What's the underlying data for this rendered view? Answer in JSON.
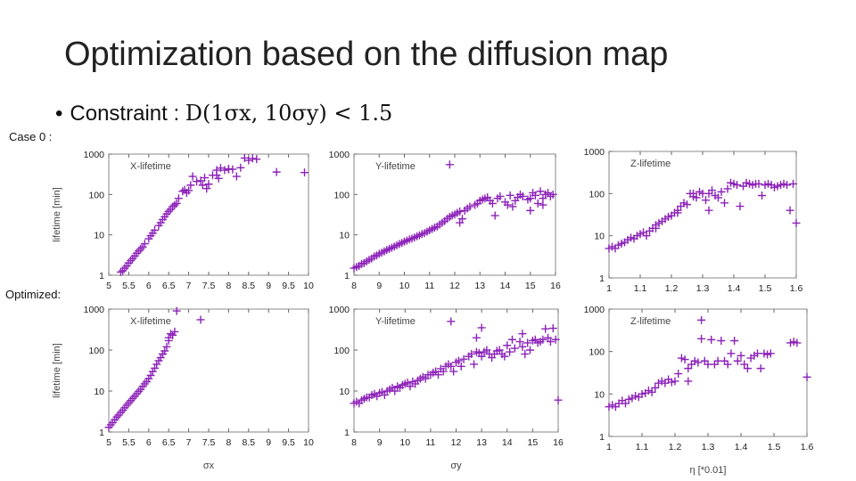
{
  "slide": {
    "title": "Optimization based on the diffusion map",
    "bullet": {
      "label": "Constraint : ",
      "formula": "D(1σx, 10σy) < 1.5"
    },
    "case_label": "Case 0 :",
    "optimized_label": "Optimized:"
  },
  "colors": {
    "marker": "#8c22b8",
    "frame": "#888888",
    "text": "#222222"
  },
  "chart_data": [
    {
      "id": "case0-x",
      "type": "scatter",
      "title": "X-lifetime",
      "xlabel": "",
      "ylabel": "lifetime [min]",
      "yscale": "log",
      "xlim": [
        5,
        10
      ],
      "ylim": [
        1,
        1000
      ],
      "xticks": [
        "5",
        "5.5",
        "6",
        "6.5",
        "7",
        "7.5",
        "8",
        "8.5",
        "9",
        "9.5",
        "10"
      ],
      "yticks": [
        "1",
        "10",
        "100",
        "1000"
      ],
      "x": [
        5.3,
        5.35,
        5.4,
        5.45,
        5.5,
        5.55,
        5.6,
        5.65,
        5.7,
        5.75,
        5.8,
        5.85,
        5.9,
        6.0,
        6.05,
        6.1,
        6.15,
        6.25,
        6.3,
        6.35,
        6.4,
        6.45,
        6.5,
        6.55,
        6.6,
        6.65,
        6.7,
        6.75,
        6.85,
        6.9,
        6.95,
        7.0,
        7.05,
        7.1,
        7.2,
        7.3,
        7.35,
        7.4,
        7.45,
        7.5,
        7.6,
        7.7,
        7.75,
        7.8,
        7.9,
        8.0,
        8.1,
        8.2,
        8.3,
        8.4,
        8.5,
        8.6,
        8.7,
        9.2,
        9.9,
        8.0,
        7.7
      ],
      "y": [
        1.2,
        1.3,
        1.5,
        1.7,
        2.0,
        2.3,
        2.6,
        3.0,
        3.5,
        4.0,
        4.5,
        5.0,
        6.0,
        8.0,
        9.5,
        11,
        13,
        17,
        20,
        24,
        28,
        33,
        38,
        43,
        50,
        55,
        60,
        80,
        120,
        130,
        110,
        125,
        170,
        280,
        210,
        220,
        170,
        260,
        140,
        180,
        300,
        400,
        250,
        450,
        400,
        420,
        420,
        280,
        460,
        800,
        700,
        780,
        750,
        360,
        350,
        430,
        300
      ]
    },
    {
      "id": "case0-y",
      "type": "scatter",
      "title": "Y-lifetime",
      "xlabel": "",
      "ylabel": "",
      "yscale": "log",
      "xlim": [
        8,
        16
      ],
      "ylim": [
        1,
        1000
      ],
      "xticks": [
        "8",
        "9",
        "10",
        "11",
        "12",
        "13",
        "14",
        "15",
        "16"
      ],
      "yticks": [
        "1",
        "10",
        "100",
        "1000"
      ],
      "x": [
        8.0,
        8.1,
        8.2,
        8.3,
        8.4,
        8.5,
        8.6,
        8.7,
        8.8,
        8.9,
        9.0,
        9.1,
        9.2,
        9.3,
        9.4,
        9.5,
        9.6,
        9.7,
        9.8,
        9.9,
        10.0,
        10.1,
        10.2,
        10.3,
        10.4,
        10.5,
        10.6,
        10.7,
        10.8,
        10.9,
        11.0,
        11.1,
        11.2,
        11.3,
        11.4,
        11.5,
        11.6,
        11.7,
        11.8,
        11.9,
        12.0,
        12.1,
        12.2,
        12.4,
        12.5,
        12.6,
        12.8,
        12.9,
        13.0,
        13.1,
        13.2,
        13.3,
        13.4,
        13.5,
        13.7,
        13.8,
        14.0,
        14.1,
        14.2,
        14.4,
        14.5,
        14.6,
        14.7,
        14.9,
        15.0,
        15.1,
        15.2,
        15.3,
        15.4,
        15.5,
        15.6,
        15.7,
        15.8,
        15.9,
        12.3,
        13.6,
        14.3,
        15.0,
        15.5,
        11.8,
        12.2
      ],
      "y": [
        1.5,
        1.6,
        1.7,
        1.9,
        2.0,
        2.2,
        2.4,
        2.6,
        2.9,
        3.1,
        3.4,
        3.6,
        3.9,
        4.2,
        4.5,
        4.8,
        5.1,
        5.5,
        5.9,
        6.3,
        6.8,
        7.2,
        7.7,
        8.1,
        8.6,
        9.2,
        9.8,
        10.5,
        11,
        12,
        13,
        14,
        15,
        16,
        18,
        20,
        22,
        25,
        28,
        30,
        32,
        35,
        38,
        40,
        45,
        50,
        55,
        60,
        70,
        75,
        80,
        85,
        70,
        60,
        80,
        90,
        65,
        55,
        95,
        70,
        85,
        100,
        90,
        75,
        80,
        110,
        95,
        60,
        120,
        80,
        100,
        110,
        90,
        100,
        25,
        30,
        50,
        40,
        55,
        550,
        20
      ]
    },
    {
      "id": "case0-z",
      "type": "scatter",
      "title": "Z-lifetime",
      "xlabel": "",
      "ylabel": "",
      "yscale": "log",
      "xlim": [
        1,
        1.6
      ],
      "ylim": [
        1,
        1000
      ],
      "xticks": [
        "1",
        "1.1",
        "1.2",
        "1.3",
        "1.4",
        "1.5",
        "1.6"
      ],
      "yticks": [
        "1",
        "10",
        "100",
        "1000"
      ],
      "x": [
        1.0,
        1.01,
        1.02,
        1.03,
        1.04,
        1.05,
        1.06,
        1.07,
        1.08,
        1.09,
        1.1,
        1.11,
        1.12,
        1.13,
        1.14,
        1.15,
        1.16,
        1.17,
        1.18,
        1.19,
        1.2,
        1.21,
        1.22,
        1.23,
        1.24,
        1.25,
        1.26,
        1.27,
        1.28,
        1.29,
        1.3,
        1.31,
        1.32,
        1.33,
        1.34,
        1.35,
        1.36,
        1.37,
        1.38,
        1.39,
        1.4,
        1.41,
        1.42,
        1.43,
        1.44,
        1.45,
        1.46,
        1.47,
        1.48,
        1.49,
        1.5,
        1.51,
        1.52,
        1.53,
        1.54,
        1.55,
        1.56,
        1.57,
        1.58,
        1.59,
        1.6,
        1.27,
        1.32,
        1.15,
        1.22
      ],
      "y": [
        5,
        5.5,
        5,
        6,
        6.5,
        7,
        8,
        9,
        8.5,
        10,
        11,
        12,
        10,
        13,
        15,
        18,
        20,
        22,
        25,
        28,
        30,
        35,
        40,
        50,
        60,
        55,
        100,
        100,
        80,
        110,
        100,
        70,
        100,
        120,
        90,
        80,
        110,
        60,
        130,
        180,
        170,
        160,
        50,
        150,
        180,
        170,
        160,
        170,
        170,
        90,
        160,
        170,
        160,
        140,
        150,
        160,
        170,
        160,
        40,
        170,
        20,
        85,
        40,
        15,
        35
      ]
    },
    {
      "id": "opt-x",
      "type": "scatter",
      "title": "X-lifetime",
      "xlabel": "σx",
      "ylabel": "lifetime [min]",
      "yscale": "log",
      "xlim": [
        5,
        10
      ],
      "ylim": [
        1,
        1000
      ],
      "xticks": [
        "5",
        "5.5",
        "6",
        "6.5",
        "7",
        "7.5",
        "8",
        "8.5",
        "9",
        "9.5",
        "10"
      ],
      "yticks": [
        "1",
        "10",
        "100",
        "1000"
      ],
      "x": [
        5.0,
        5.05,
        5.1,
        5.15,
        5.2,
        5.25,
        5.3,
        5.35,
        5.4,
        5.45,
        5.5,
        5.55,
        5.6,
        5.65,
        5.7,
        5.75,
        5.8,
        5.85,
        5.9,
        5.95,
        6.0,
        6.05,
        6.1,
        6.15,
        6.2,
        6.25,
        6.3,
        6.35,
        6.4,
        6.45,
        6.5,
        6.55,
        6.6,
        6.65,
        6.7,
        7.3,
        6.35,
        6.5
      ],
      "y": [
        1.3,
        1.5,
        1.7,
        2.0,
        2.3,
        2.6,
        3.0,
        3.4,
        3.9,
        4.5,
        5.1,
        5.8,
        6.6,
        7.5,
        8.6,
        9.8,
        11,
        13,
        15,
        17,
        20,
        24,
        30,
        36,
        45,
        55,
        65,
        80,
        95,
        120,
        170,
        250,
        230,
        280,
        900,
        550,
        80,
        200
      ]
    },
    {
      "id": "opt-y",
      "type": "scatter",
      "title": "Y-lifetime",
      "xlabel": "σy",
      "ylabel": "",
      "yscale": "log",
      "xlim": [
        8,
        16
      ],
      "ylim": [
        1,
        1000
      ],
      "xticks": [
        "8",
        "9",
        "10",
        "11",
        "12",
        "13",
        "14",
        "15",
        "16"
      ],
      "yticks": [
        "1",
        "10",
        "100",
        "1000"
      ],
      "x": [
        8.0,
        8.1,
        8.2,
        8.3,
        8.4,
        8.5,
        8.6,
        8.7,
        8.8,
        8.9,
        9.0,
        9.1,
        9.2,
        9.3,
        9.4,
        9.5,
        9.6,
        9.7,
        9.8,
        9.9,
        10.0,
        10.1,
        10.2,
        10.3,
        10.4,
        10.5,
        10.6,
        10.7,
        10.8,
        10.9,
        11.0,
        11.1,
        11.2,
        11.3,
        11.4,
        11.5,
        11.6,
        11.7,
        11.8,
        11.9,
        12.0,
        12.1,
        12.2,
        12.3,
        12.5,
        12.6,
        12.7,
        12.8,
        12.9,
        13.0,
        13.1,
        13.2,
        13.3,
        13.4,
        13.5,
        13.6,
        13.7,
        13.8,
        13.9,
        14.0,
        14.1,
        14.2,
        14.3,
        14.5,
        14.6,
        14.7,
        14.8,
        14.9,
        15.0,
        15.1,
        15.2,
        15.3,
        15.4,
        15.5,
        15.6,
        15.7,
        15.8,
        15.9,
        16.0,
        11.8,
        13.0,
        12.8,
        14.6
      ],
      "y": [
        5,
        5.5,
        5,
        6,
        6.5,
        7,
        7,
        8,
        8.5,
        7.5,
        9,
        9.5,
        8,
        10,
        11,
        12,
        10,
        13,
        12,
        14,
        15,
        16,
        13,
        17,
        15,
        18,
        20,
        22,
        20,
        25,
        25,
        28,
        30,
        25,
        35,
        30,
        40,
        45,
        40,
        30,
        50,
        55,
        40,
        60,
        70,
        80,
        45,
        90,
        85,
        70,
        90,
        100,
        80,
        65,
        80,
        95,
        100,
        80,
        70,
        130,
        90,
        180,
        110,
        160,
        120,
        80,
        150,
        100,
        170,
        180,
        150,
        160,
        180,
        330,
        200,
        160,
        340,
        180,
        6,
        500,
        350,
        200,
        250
      ]
    },
    {
      "id": "opt-z",
      "type": "scatter",
      "title": "Z-lifetime",
      "xlabel": "η [*0.01]",
      "ylabel": "",
      "yscale": "log",
      "xlim": [
        1,
        1.6
      ],
      "ylim": [
        1,
        1000
      ],
      "xticks": [
        "1",
        "1.1",
        "1.2",
        "1.3",
        "1.4",
        "1.5",
        "1.6"
      ],
      "yticks": [
        "1",
        "10",
        "100",
        "1000"
      ],
      "x": [
        1.0,
        1.01,
        1.02,
        1.03,
        1.04,
        1.05,
        1.06,
        1.07,
        1.08,
        1.09,
        1.1,
        1.11,
        1.12,
        1.13,
        1.14,
        1.15,
        1.16,
        1.17,
        1.18,
        1.19,
        1.2,
        1.21,
        1.22,
        1.23,
        1.24,
        1.25,
        1.26,
        1.27,
        1.28,
        1.29,
        1.3,
        1.31,
        1.32,
        1.33,
        1.34,
        1.35,
        1.36,
        1.37,
        1.38,
        1.39,
        1.4,
        1.41,
        1.42,
        1.43,
        1.44,
        1.45,
        1.46,
        1.47,
        1.48,
        1.49,
        1.55,
        1.56,
        1.57,
        1.6,
        1.28,
        1.24
      ],
      "y": [
        5,
        5.5,
        5,
        6,
        7,
        6,
        7.5,
        8,
        9,
        8.5,
        10,
        10.5,
        12,
        11,
        14,
        18,
        20,
        18,
        22,
        19,
        20,
        30,
        70,
        65,
        40,
        50,
        60,
        55,
        200,
        60,
        50,
        190,
        50,
        60,
        180,
        60,
        50,
        90,
        180,
        60,
        80,
        50,
        40,
        70,
        80,
        90,
        40,
        90,
        85,
        90,
        160,
        170,
        160,
        25,
        550,
        20
      ]
    }
  ]
}
